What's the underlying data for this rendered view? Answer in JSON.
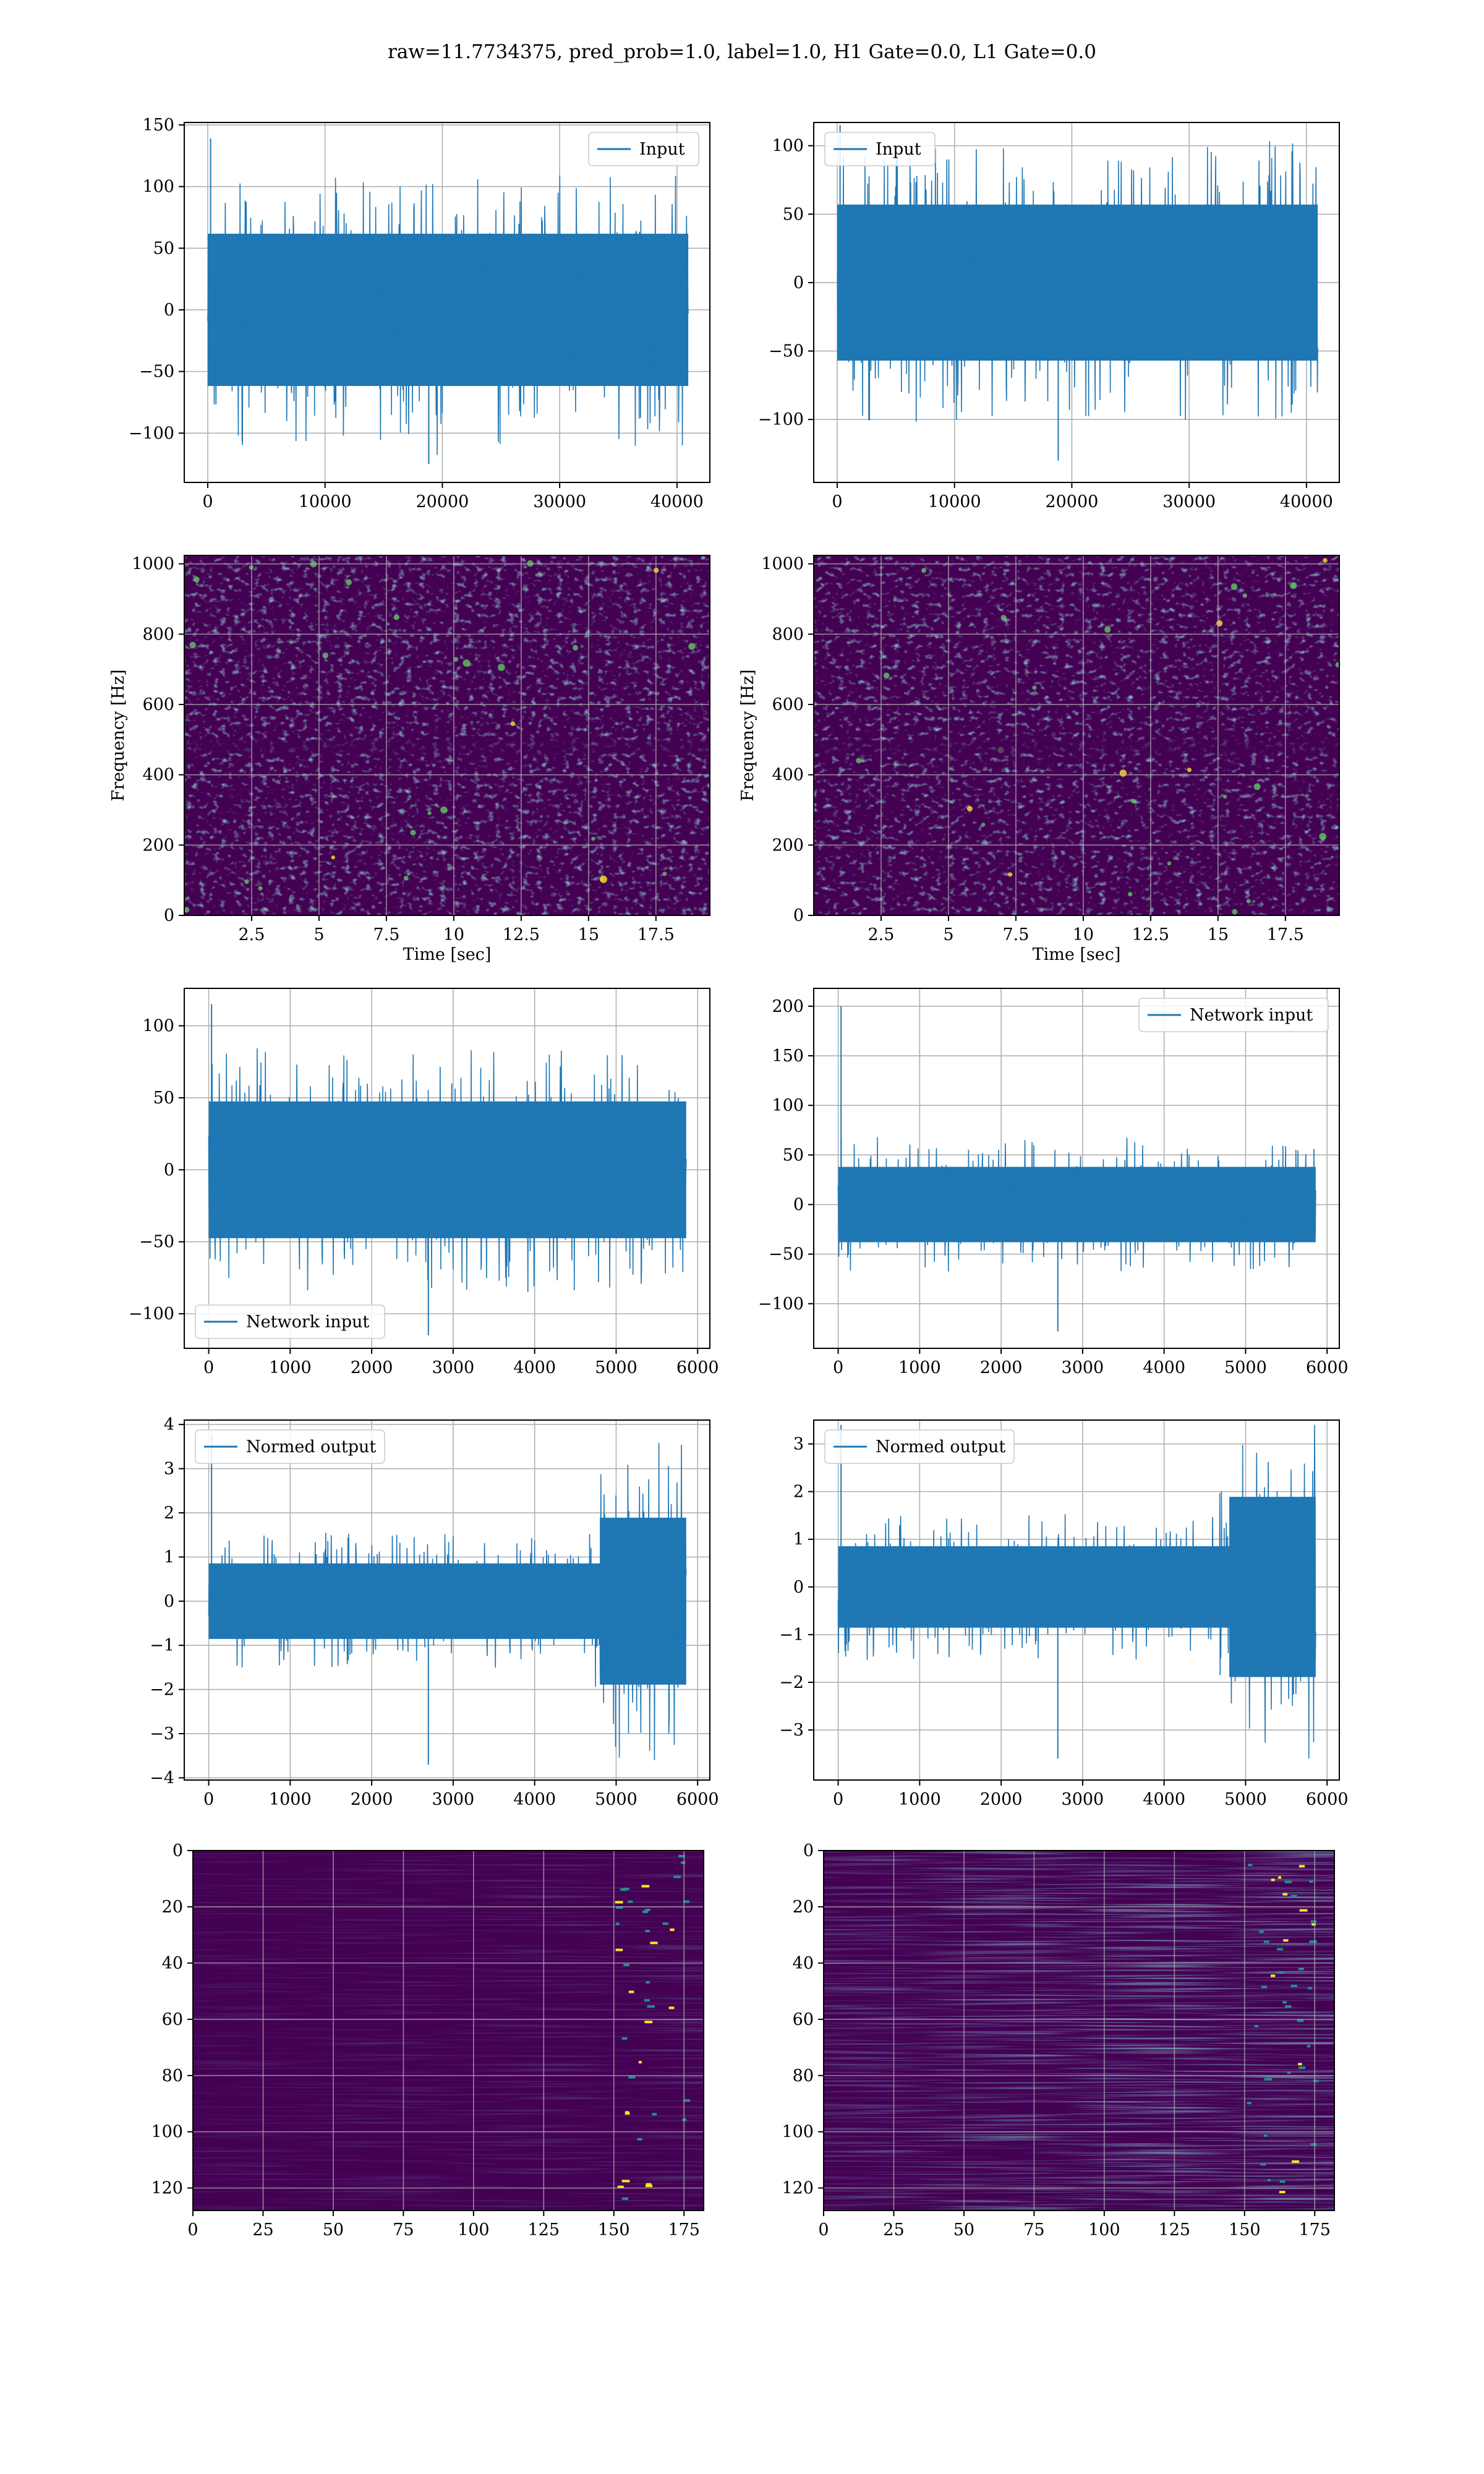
{
  "figure": {
    "title": "raw=11.7734375, pred_prob=1.0, label=1.0, H1 Gate=0.0, L1 Gate=0.0"
  },
  "colors": {
    "line": "#1f77b4",
    "grid": "#b0b0b0",
    "viridis_low": "#440154",
    "viridis_mid": "#21918c",
    "viridis_high": "#fde725"
  },
  "chart_data": [
    {
      "id": "row1-left",
      "type": "line",
      "xlim": [
        -2000,
        42800
      ],
      "ylim": [
        -140,
        152
      ],
      "xticks": [
        0,
        10000,
        20000,
        30000,
        40000
      ],
      "yticks": [
        -100,
        -50,
        0,
        50,
        100,
        150
      ],
      "legend": {
        "label": "Input",
        "loc": "upper right"
      },
      "series": [
        {
          "name": "Input",
          "n_samples": 40960,
          "x_range": [
            0,
            40960
          ],
          "envelope_typical": [
            -65,
            65
          ],
          "y_min": -125,
          "y_max": 139
        }
      ]
    },
    {
      "id": "row1-right",
      "type": "line",
      "xlim": [
        -2000,
        42800
      ],
      "ylim": [
        -146,
        117
      ],
      "xticks": [
        0,
        10000,
        20000,
        30000,
        40000
      ],
      "yticks": [
        -100,
        -50,
        0,
        50,
        100
      ],
      "legend": {
        "label": "Input",
        "loc": "upper left"
      },
      "series": [
        {
          "name": "Input",
          "n_samples": 40960,
          "x_range": [
            0,
            40960
          ],
          "envelope_typical": [
            -60,
            60
          ],
          "y_min": -130,
          "y_max": 115
        }
      ]
    },
    {
      "id": "row2-left",
      "type": "heatmap",
      "xlim": [
        0,
        19.5
      ],
      "ylim": [
        0,
        1024
      ],
      "xticks": [
        2.5,
        5.0,
        7.5,
        10.0,
        12.5,
        15.0,
        17.5
      ],
      "yticks": [
        0,
        200,
        400,
        600,
        800,
        1000
      ],
      "xlabel": "Time [sec]",
      "ylabel": "Frequency [Hz]",
      "colormap": "viridis"
    },
    {
      "id": "row2-right",
      "type": "heatmap",
      "xlim": [
        0,
        19.5
      ],
      "ylim": [
        0,
        1024
      ],
      "xticks": [
        2.5,
        5.0,
        7.5,
        10.0,
        12.5,
        15.0,
        17.5
      ],
      "yticks": [
        0,
        200,
        400,
        600,
        800,
        1000
      ],
      "xlabel": "Time [sec]",
      "ylabel": "Frequency [Hz]",
      "colormap": "viridis"
    },
    {
      "id": "row3-left",
      "type": "line",
      "xlim": [
        -300,
        6150
      ],
      "ylim": [
        -124,
        126
      ],
      "xticks": [
        0,
        1000,
        2000,
        3000,
        4000,
        5000,
        6000
      ],
      "yticks": [
        -100,
        -50,
        0,
        50,
        100
      ],
      "legend": {
        "label": "Network input",
        "loc": "lower left"
      },
      "series": [
        {
          "name": "Network input",
          "n_samples": 5860,
          "x_range": [
            0,
            5860
          ],
          "envelope_typical": [
            -50,
            50
          ],
          "y_min": -115,
          "y_max": 115
        }
      ]
    },
    {
      "id": "row3-right",
      "type": "line",
      "xlim": [
        -300,
        6150
      ],
      "ylim": [
        -145,
        218
      ],
      "xticks": [
        0,
        1000,
        2000,
        3000,
        4000,
        5000,
        6000
      ],
      "yticks": [
        -100,
        -50,
        0,
        50,
        100,
        150,
        200
      ],
      "legend": {
        "label": "Network input",
        "loc": "upper right"
      },
      "series": [
        {
          "name": "Network input",
          "n_samples": 5860,
          "x_range": [
            0,
            5860
          ],
          "envelope_typical": [
            -40,
            40
          ],
          "y_min": -128,
          "y_max": 200
        }
      ]
    },
    {
      "id": "row4-left",
      "type": "line",
      "xlim": [
        -300,
        6150
      ],
      "ylim": [
        -4.05,
        4.1
      ],
      "xticks": [
        0,
        1000,
        2000,
        3000,
        4000,
        5000,
        6000
      ],
      "yticks": [
        -4,
        -3,
        -2,
        -1,
        0,
        1,
        2,
        3,
        4
      ],
      "legend": {
        "label": "Normed output",
        "loc": "upper left"
      },
      "series": [
        {
          "name": "Normed output",
          "n_samples": 5860,
          "x_range": [
            0,
            5860
          ],
          "envelope_typical": [
            -0.9,
            0.9
          ],
          "burst_range": [
            4600,
            5800
          ],
          "y_min": -3.7,
          "y_max": 3.8
        }
      ]
    },
    {
      "id": "row4-right",
      "type": "line",
      "xlim": [
        -300,
        6150
      ],
      "ylim": [
        -4.05,
        3.5
      ],
      "xticks": [
        0,
        1000,
        2000,
        3000,
        4000,
        5000,
        6000
      ],
      "yticks": [
        -3,
        -2,
        -1,
        0,
        1,
        2,
        3
      ],
      "legend": {
        "label": "Normed output",
        "loc": "upper left"
      },
      "series": [
        {
          "name": "Normed output",
          "n_samples": 5860,
          "x_range": [
            0,
            5860
          ],
          "envelope_typical": [
            -0.9,
            0.9
          ],
          "burst_range": [
            4600,
            5800
          ],
          "y_min": -3.6,
          "y_max": 3.4
        }
      ]
    },
    {
      "id": "row5-left",
      "type": "heatmap",
      "xlim": [
        0,
        182
      ],
      "ylim": [
        128,
        0
      ],
      "xticks": [
        0,
        25,
        50,
        75,
        100,
        125,
        150,
        175
      ],
      "yticks": [
        0,
        20,
        40,
        60,
        80,
        100,
        120
      ],
      "colormap": "viridis"
    },
    {
      "id": "row5-right",
      "type": "heatmap",
      "xlim": [
        0,
        182
      ],
      "ylim": [
        128,
        0
      ],
      "xticks": [
        0,
        25,
        50,
        75,
        100,
        125,
        150,
        175
      ],
      "yticks": [
        0,
        20,
        40,
        60,
        80,
        100,
        120
      ],
      "colormap": "viridis"
    }
  ]
}
